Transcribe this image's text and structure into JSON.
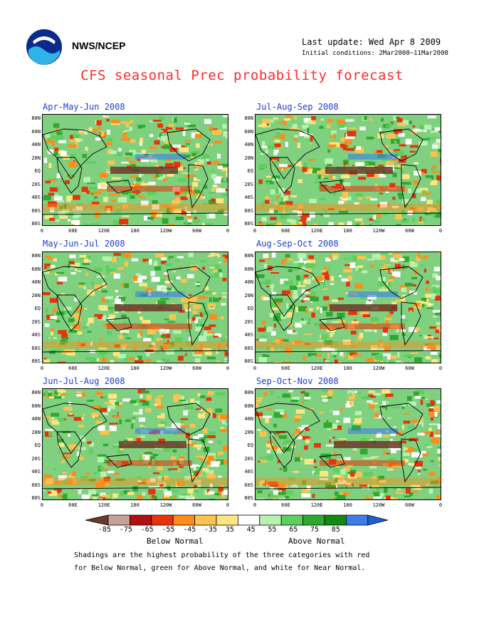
{
  "header": {
    "agency": "NWS/NCEP",
    "last_update": "Last update: Wed Apr 8 2009",
    "initial_conditions": "Initial conditions: 2Mar2008~11Mar2008",
    "title": "CFS seasonal Prec probability forecast"
  },
  "panels": [
    {
      "title": "Apr-May-Jun 2008",
      "position": "row-1-left"
    },
    {
      "title": "Jul-Aug-Sep 2008",
      "position": "row-1-right"
    },
    {
      "title": "May-Jun-Jul 2008",
      "position": "row-2-left"
    },
    {
      "title": "Aug-Sep-Oct 2008",
      "position": "row-2-right"
    },
    {
      "title": "Jun-Jul-Aug 2008",
      "position": "row-3-left"
    },
    {
      "title": "Sep-Oct-Nov 2008",
      "position": "row-3-right"
    }
  ],
  "axes": {
    "lat_labels": [
      "80N",
      "60N",
      "40N",
      "20N",
      "EQ",
      "20S",
      "40S",
      "60S",
      "80S"
    ],
    "lon_labels": [
      "0",
      "60E",
      "120E",
      "180",
      "120W",
      "60W",
      "0"
    ]
  },
  "legend": {
    "labels": [
      "-85",
      "-75",
      "-65",
      "-55",
      "-45",
      "-35",
      "35",
      "45",
      "55",
      "65",
      "75",
      "85"
    ],
    "colors": [
      "#6b3a2a",
      "#c7a09a",
      "#b01010",
      "#e8320a",
      "#ff8c1a",
      "#ffc24d",
      "#ffe680",
      "#ffffff",
      "#b8f2b0",
      "#5ccf5c",
      "#2ea82e",
      "#108a10",
      "#3c7ee6",
      "#1f5fd0"
    ],
    "below_label": "Below Normal",
    "above_label": "Above Normal"
  },
  "caption": {
    "line1": "Shadings are the highest probability of the three categories with red",
    "line2": "for Below Normal, green for Above Normal, and white for Near Normal."
  }
}
